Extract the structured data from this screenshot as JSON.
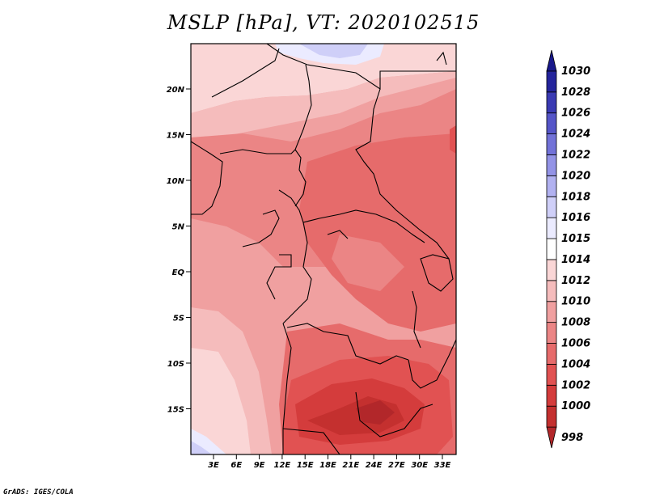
{
  "title": "MSLP [hPa], VT: 2020102515",
  "map": {
    "lat_labels": [
      "20N",
      "15N",
      "10N",
      "5N",
      "EQ",
      "5S",
      "10S",
      "15S"
    ],
    "lon_labels": [
      "3E",
      "6E",
      "9E",
      "12E",
      "15E",
      "18E",
      "21E",
      "24E",
      "27E",
      "30E",
      "33E"
    ],
    "field": "MSLP",
    "units": "hPa"
  },
  "colorbar": {
    "levels": [
      "998",
      "1000",
      "1002",
      "1004",
      "1006",
      "1008",
      "1010",
      "1012",
      "1014",
      "1015",
      "1016",
      "1018",
      "1020",
      "1022",
      "1024",
      "1026",
      "1028",
      "1030"
    ],
    "colors": [
      "#b2272a",
      "#c4302f",
      "#d43c3c",
      "#e15252",
      "#e66b6b",
      "#eb8585",
      "#f0a0a0",
      "#f5bcbc",
      "#fad6d6",
      "#ffffff",
      "#ebebff",
      "#cfcff8",
      "#b1b1f0",
      "#9393e6",
      "#7272d8",
      "#5555c8",
      "#3a3ab3",
      "#24249c",
      "#18188a"
    ]
  },
  "credit": "GrADS: IGES/COLA"
}
